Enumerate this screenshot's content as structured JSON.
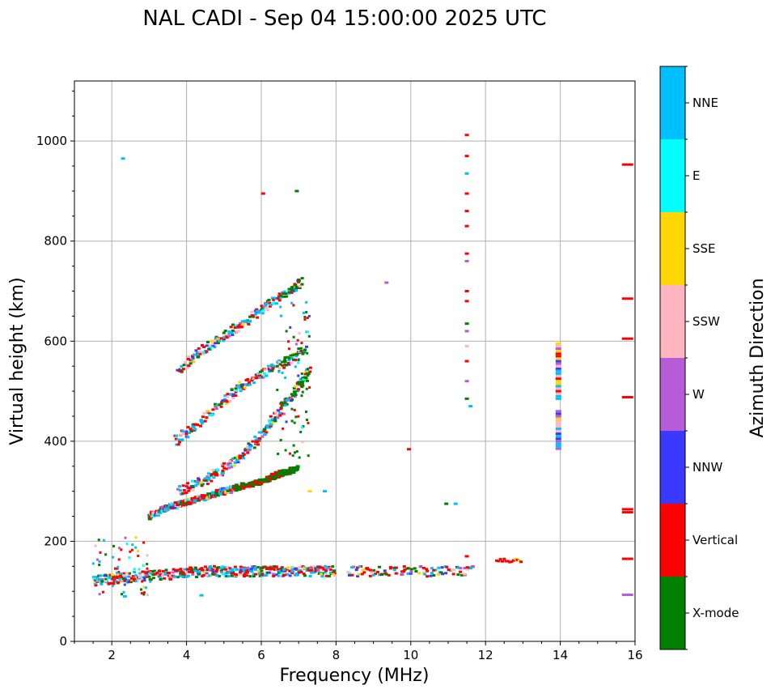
{
  "chart_data": {
    "type": "scatter",
    "title": "NAL CADI - Sep 04 15:00:00 2025 UTC",
    "xlabel": "Frequency (MHz)",
    "ylabel": "Virtual height (km)",
    "xlim": [
      1,
      16
    ],
    "ylim": [
      0,
      1120
    ],
    "xticks": [
      2,
      4,
      6,
      8,
      10,
      12,
      14,
      16
    ],
    "yticks": [
      0,
      200,
      400,
      600,
      800,
      1000
    ],
    "grid": true,
    "colorbar": {
      "title": "Azimuth Direction",
      "categories": [
        {
          "name": "X-mode",
          "color": "#008000"
        },
        {
          "name": "Vertical",
          "color": "#ff0000"
        },
        {
          "name": "NNW",
          "color": "#3a3aff"
        },
        {
          "name": "W",
          "color": "#b65cd6"
        },
        {
          "name": "SSW",
          "color": "#ffb6c1"
        },
        {
          "name": "SSE",
          "color": "#ffd700"
        },
        {
          "name": "E",
          "color": "#00ffff"
        },
        {
          "name": "NNE",
          "color": "#00bfff"
        }
      ]
    },
    "traces": [
      {
        "name": "E-layer",
        "x0": 1.5,
        "x1": 11.6,
        "h0": 130,
        "h1": 150,
        "step": 0.1,
        "bands": 2
      },
      {
        "name": "F-trace-1",
        "points": [
          [
            3.0,
            250
          ],
          [
            3.5,
            268
          ],
          [
            4.0,
            278
          ],
          [
            4.5,
            288
          ],
          [
            5.0,
            300
          ],
          [
            5.5,
            310
          ],
          [
            6.0,
            320
          ],
          [
            6.5,
            335
          ],
          [
            7.0,
            345
          ]
        ]
      },
      {
        "name": "F-trace-2",
        "points": [
          [
            3.8,
            300
          ],
          [
            4.3,
            315
          ],
          [
            4.8,
            335
          ],
          [
            5.3,
            360
          ],
          [
            5.8,
            395
          ],
          [
            6.2,
            430
          ],
          [
            6.6,
            470
          ],
          [
            7.0,
            510
          ],
          [
            7.3,
            540
          ]
        ]
      },
      {
        "name": "F-trace-3",
        "points": [
          [
            3.7,
            400
          ],
          [
            4.2,
            430
          ],
          [
            4.8,
            465
          ],
          [
            5.3,
            500
          ],
          [
            5.8,
            525
          ],
          [
            6.3,
            545
          ],
          [
            6.8,
            565
          ],
          [
            7.2,
            585
          ]
        ]
      },
      {
        "name": "F-trace-4",
        "points": [
          [
            3.8,
            540
          ],
          [
            4.3,
            575
          ],
          [
            4.8,
            600
          ],
          [
            5.3,
            625
          ],
          [
            5.8,
            650
          ],
          [
            6.3,
            680
          ],
          [
            6.8,
            700
          ],
          [
            7.1,
            720
          ]
        ]
      }
    ],
    "isolated_points": [
      {
        "x": 11.5,
        "y": 1012,
        "az": "Vertical"
      },
      {
        "x": 11.5,
        "y": 970,
        "az": "Vertical"
      },
      {
        "x": 11.5,
        "y": 935,
        "az": "NNE"
      },
      {
        "x": 11.5,
        "y": 895,
        "az": "Vertical"
      },
      {
        "x": 11.5,
        "y": 860,
        "az": "Vertical"
      },
      {
        "x": 11.5,
        "y": 830,
        "az": "Vertical"
      },
      {
        "x": 11.5,
        "y": 775,
        "az": "Vertical"
      },
      {
        "x": 11.5,
        "y": 760,
        "az": "W"
      },
      {
        "x": 11.5,
        "y": 700,
        "az": "Vertical"
      },
      {
        "x": 11.5,
        "y": 680,
        "az": "Vertical"
      },
      {
        "x": 11.5,
        "y": 635,
        "az": "X-mode"
      },
      {
        "x": 11.5,
        "y": 620,
        "az": "W"
      },
      {
        "x": 11.5,
        "y": 590,
        "az": "SSW"
      },
      {
        "x": 11.5,
        "y": 560,
        "az": "Vertical"
      },
      {
        "x": 11.5,
        "y": 520,
        "az": "W"
      },
      {
        "x": 11.5,
        "y": 485,
        "az": "X-mode"
      },
      {
        "x": 11.6,
        "y": 470,
        "az": "NNE"
      },
      {
        "x": 11.5,
        "y": 170,
        "az": "Vertical"
      },
      {
        "x": 15.8,
        "y": 953,
        "az": "Vertical"
      },
      {
        "x": 15.8,
        "y": 685,
        "az": "Vertical"
      },
      {
        "x": 15.8,
        "y": 605,
        "az": "Vertical"
      },
      {
        "x": 15.8,
        "y": 488,
        "az": "Vertical"
      },
      {
        "x": 15.8,
        "y": 264,
        "az": "Vertical"
      },
      {
        "x": 15.8,
        "y": 258,
        "az": "Vertical"
      },
      {
        "x": 15.8,
        "y": 165,
        "az": "Vertical"
      },
      {
        "x": 15.8,
        "y": 93,
        "az": "W"
      },
      {
        "x": 9.35,
        "y": 717,
        "az": "W"
      },
      {
        "x": 9.95,
        "y": 384,
        "az": "Vertical"
      },
      {
        "x": 10.95,
        "y": 275,
        "az": "X-mode"
      },
      {
        "x": 11.2,
        "y": 275,
        "az": "NNE"
      },
      {
        "x": 2.3,
        "y": 965,
        "az": "NNE"
      },
      {
        "x": 6.05,
        "y": 895,
        "az": "Vertical"
      },
      {
        "x": 6.95,
        "y": 900,
        "az": "X-mode"
      },
      {
        "x": 7.7,
        "y": 300,
        "az": "NNE"
      },
      {
        "x": 7.3,
        "y": 300,
        "az": "SSE"
      },
      {
        "x": 4.4,
        "y": 92,
        "az": "NNE"
      },
      {
        "x": 2.35,
        "y": 90,
        "az": "NNE"
      }
    ],
    "column_14mhz": {
      "x": 13.95,
      "y0": 385,
      "y1": 595
    },
    "sporadic_12_13": {
      "x0": 12.3,
      "x1": 13.0,
      "h0": 158,
      "h1": 165
    }
  }
}
